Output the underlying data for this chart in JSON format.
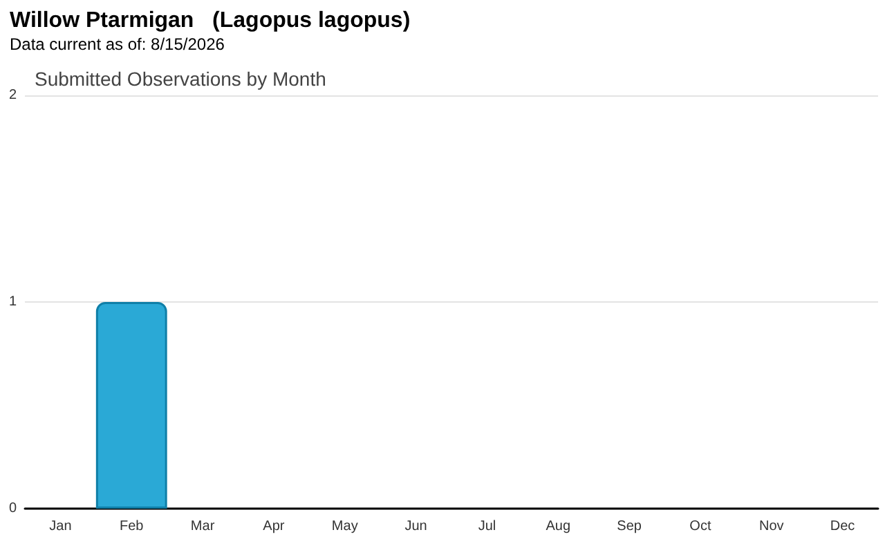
{
  "chart_data": {
    "type": "bar",
    "title": "Willow Ptarmigan   (Lagopus lagopus)",
    "subtitle": "Data current as of: 8/15/2026",
    "annotations": [
      "Submitted Observations by Month"
    ],
    "categories": [
      "Jan",
      "Feb",
      "Mar",
      "Apr",
      "May",
      "Jun",
      "Jul",
      "Aug",
      "Sep",
      "Oct",
      "Nov",
      "Dec"
    ],
    "values": [
      0,
      1,
      0,
      0,
      0,
      0,
      0,
      0,
      0,
      0,
      0,
      0
    ],
    "color": "#2aa9d6",
    "ylim": [
      0,
      2
    ],
    "yticks": [
      0,
      1,
      2
    ],
    "grid": "y"
  }
}
